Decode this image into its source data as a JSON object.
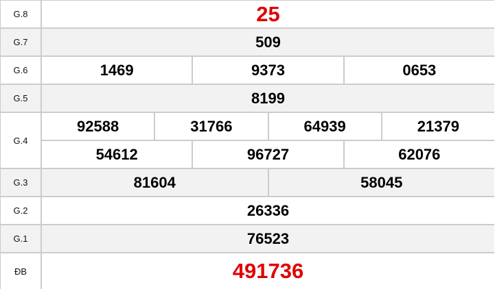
{
  "colors": {
    "accent_red": "#e00000",
    "row_alt": "#f2f2f2",
    "border": "#cccccc"
  },
  "prizes": [
    {
      "label": "G.8",
      "numbers": [
        [
          "25"
        ]
      ]
    },
    {
      "label": "G.7",
      "numbers": [
        [
          "509"
        ]
      ]
    },
    {
      "label": "G.6",
      "numbers": [
        [
          "1469",
          "9373",
          "0653"
        ]
      ]
    },
    {
      "label": "G.5",
      "numbers": [
        [
          "8199"
        ]
      ]
    },
    {
      "label": "G.4",
      "numbers": [
        [
          "92588",
          "31766",
          "64939",
          "21379"
        ],
        [
          "54612",
          "96727",
          "62076"
        ]
      ]
    },
    {
      "label": "G.3",
      "numbers": [
        [
          "81604",
          "58045"
        ]
      ]
    },
    {
      "label": "G.2",
      "numbers": [
        [
          "26336"
        ]
      ]
    },
    {
      "label": "G.1",
      "numbers": [
        [
          "76523"
        ]
      ]
    },
    {
      "label": "ĐB",
      "numbers": [
        [
          "491736"
        ]
      ]
    }
  ]
}
